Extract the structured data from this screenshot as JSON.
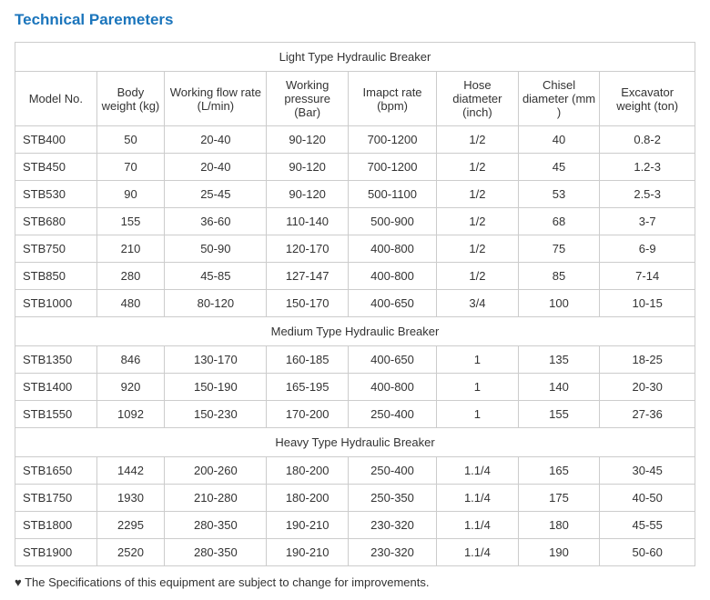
{
  "title": "Technical Paremeters",
  "columns": [
    "Model No.",
    "Body weight (kg)",
    "Working flow rate (L/min)",
    "Working pressure (Bar)",
    "Imapct rate (bpm)",
    "Hose diatmeter (inch)",
    "Chisel diameter (mm )",
    "Excavator weight (ton)"
  ],
  "col_widths_pct": [
    12,
    10,
    15,
    12,
    13,
    12,
    12,
    14
  ],
  "sections": [
    {
      "label": "Light Type Hydraulic Breaker",
      "rows": [
        [
          "STB400",
          "50",
          "20-40",
          "90-120",
          "700-1200",
          "1/2",
          "40",
          "0.8-2"
        ],
        [
          "STB450",
          "70",
          "20-40",
          "90-120",
          "700-1200",
          "1/2",
          "45",
          "1.2-3"
        ],
        [
          "STB530",
          "90",
          "25-45",
          "90-120",
          "500-1100",
          "1/2",
          "53",
          "2.5-3"
        ],
        [
          "STB680",
          "155",
          "36-60",
          "110-140",
          "500-900",
          "1/2",
          "68",
          "3-7"
        ],
        [
          "STB750",
          "210",
          "50-90",
          "120-170",
          "400-800",
          "1/2",
          "75",
          "6-9"
        ],
        [
          "STB850",
          "280",
          "45-85",
          "127-147",
          "400-800",
          "1/2",
          "85",
          "7-14"
        ],
        [
          "STB1000",
          "480",
          "80-120",
          "150-170",
          "400-650",
          "3/4",
          "100",
          "10-15"
        ]
      ]
    },
    {
      "label": "Medium Type Hydraulic Breaker",
      "rows": [
        [
          "STB1350",
          "846",
          "130-170",
          "160-185",
          "400-650",
          "1",
          "135",
          "18-25"
        ],
        [
          "STB1400",
          "920",
          "150-190",
          "165-195",
          "400-800",
          "1",
          "140",
          "20-30"
        ],
        [
          "STB1550",
          "1092",
          "150-230",
          "170-200",
          "250-400",
          "1",
          "155",
          "27-36"
        ]
      ]
    },
    {
      "label": "Heavy Type Hydraulic Breaker",
      "rows": [
        [
          "STB1650",
          "1442",
          "200-260",
          "180-200",
          "250-400",
          "1.1/4",
          "165",
          "30-45"
        ],
        [
          "STB1750",
          "1930",
          "210-280",
          "180-200",
          "250-350",
          "1.1/4",
          "175",
          "40-50"
        ],
        [
          "STB1800",
          "2295",
          "280-350",
          "190-210",
          "230-320",
          "1.1/4",
          "180",
          "45-55"
        ],
        [
          "STB1900",
          "2520",
          "280-350",
          "190-210",
          "230-320",
          "1.1/4",
          "190",
          "50-60"
        ]
      ]
    }
  ],
  "footnote": "♥ The Specifications of this equipment are subject to change for improvements.",
  "colors": {
    "title": "#1b75bc",
    "border": "#cccccc",
    "text": "#333333",
    "background": "#ffffff"
  }
}
